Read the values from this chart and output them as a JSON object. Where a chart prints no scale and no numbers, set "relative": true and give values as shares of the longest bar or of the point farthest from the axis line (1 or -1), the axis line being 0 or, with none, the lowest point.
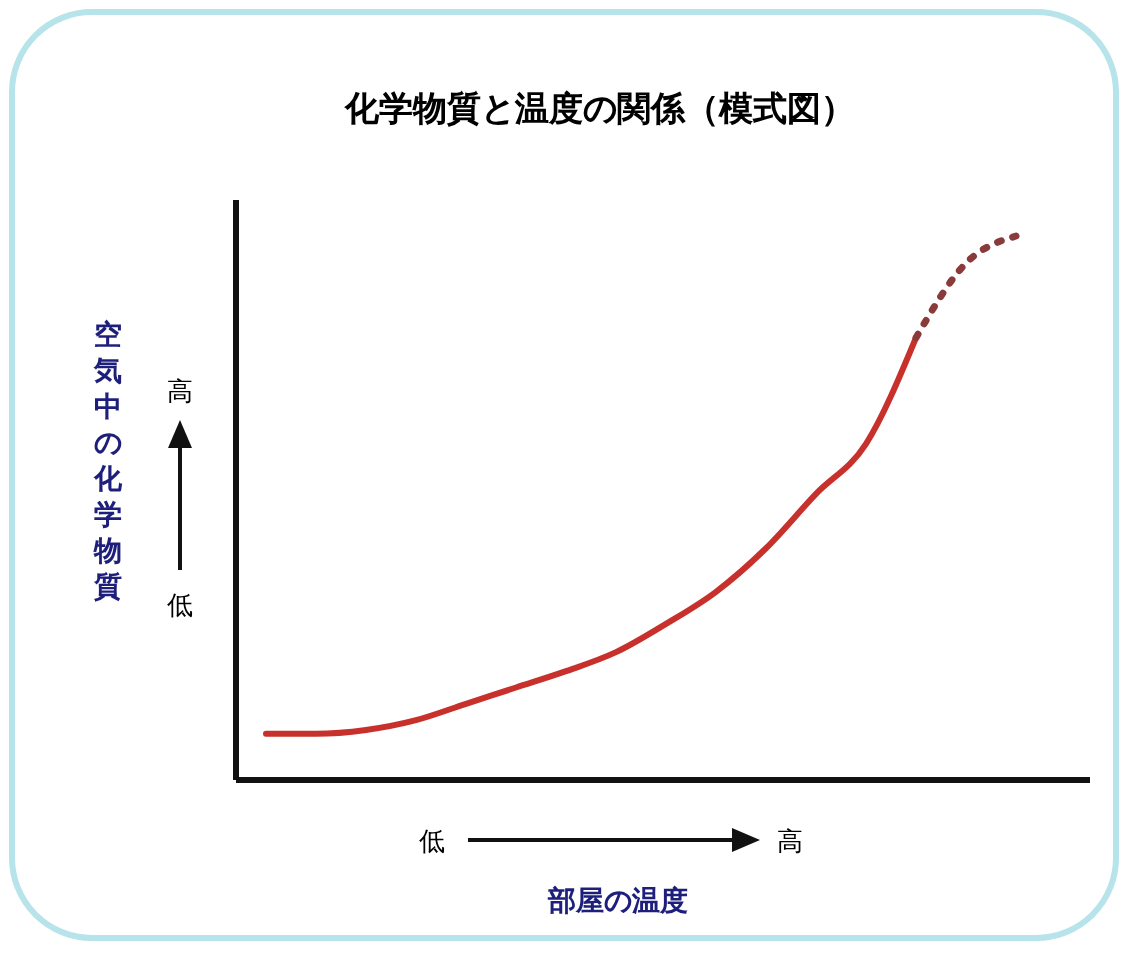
{
  "chart_data": {
    "type": "line",
    "title": "化学物質と温度の関係（模式図）",
    "xlabel": "部屋の温度",
    "ylabel": "空気中の化学物質",
    "relative": true,
    "annotations": [
      "低",
      "高",
      "低",
      "高"
    ],
    "categories": [
      null,
      null,
      null,
      null,
      null,
      null,
      null,
      null,
      null,
      null,
      null,
      null,
      null,
      null,
      null,
      null
    ],
    "series": [
      {
        "color": "#c8302c",
        "line_style": "solid",
        "values": [
          0.085,
          0.085,
          0.092,
          0.11,
          0.14,
          0.17,
          0.2,
          0.235,
          0.287,
          0.346,
          0.426,
          0.526,
          0.618,
          0.813,
          null,
          null
        ]
      },
      {
        "color": "#8a3a3a",
        "line_style": "dotted",
        "values": [
          null,
          null,
          null,
          null,
          null,
          null,
          null,
          null,
          null,
          null,
          null,
          null,
          null,
          0.813,
          0.95,
          1
        ]
      }
    ]
  }
}
